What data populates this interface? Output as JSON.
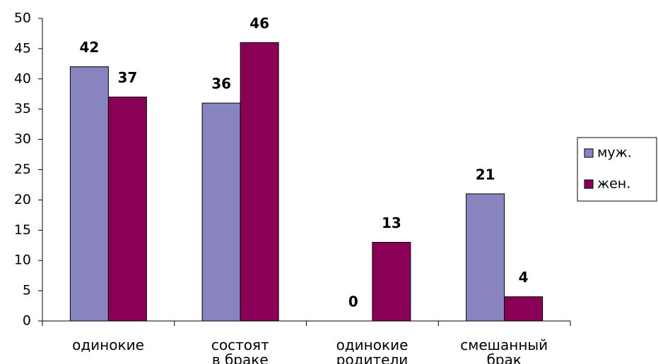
{
  "chart_data": {
    "type": "bar",
    "categories": [
      "одинокие",
      "состоят\nв браке",
      "одинокие\nродители",
      "смешанный\nбрак"
    ],
    "series": [
      {
        "name": "муж.",
        "color": "#8884c0",
        "values": [
          42,
          36,
          0,
          21
        ]
      },
      {
        "name": "жен.",
        "color": "#8b0057",
        "values": [
          37,
          46,
          13,
          4
        ]
      }
    ],
    "ylim": [
      0,
      50
    ],
    "yticks": [
      0,
      5,
      10,
      15,
      20,
      25,
      30,
      35,
      40,
      45,
      50
    ],
    "legend": "right",
    "grid": false
  }
}
